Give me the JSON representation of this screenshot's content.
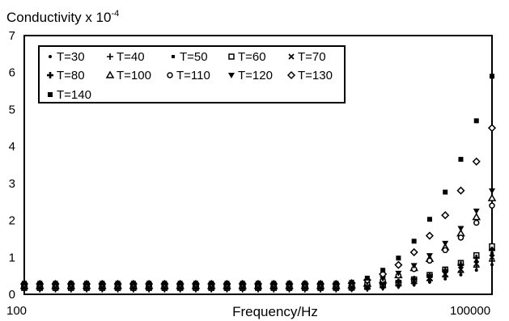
{
  "chart_data": {
    "type": "scatter",
    "title": "",
    "ylabel_main": "Conductivity x 10",
    "ylabel_exp": "-4",
    "xlabel": "Frequency/Hz",
    "x_scale": "log",
    "xlim": [
      100,
      100000
    ],
    "ylim": [
      0,
      7
    ],
    "y_ticks": [
      "0",
      "1",
      "2",
      "3",
      "4",
      "5",
      "6",
      "7"
    ],
    "x_tick_labels": [
      "100",
      "100000"
    ],
    "legend_position": "top-left",
    "series": [
      {
        "name": "T=30",
        "marker": "dot",
        "y_end": 0.8
      },
      {
        "name": "T=40",
        "marker": "plus",
        "y_end": 0.9
      },
      {
        "name": "T=50",
        "marker": "small-square",
        "y_end": 1.1
      },
      {
        "name": "T=60",
        "marker": "open-square",
        "y_end": 1.3
      },
      {
        "name": "T=70",
        "marker": "cross",
        "y_end": 1.0
      },
      {
        "name": "T=80",
        "marker": "filled-cross",
        "y_end": 1.2
      },
      {
        "name": "T=100",
        "marker": "triangle",
        "y_end": 2.6
      },
      {
        "name": "T=110",
        "marker": "circle",
        "y_end": 2.4
      },
      {
        "name": "T=120",
        "marker": "down-triangle",
        "y_end": 2.8
      },
      {
        "name": "T=130",
        "marker": "diamond",
        "y_end": 4.5
      },
      {
        "name": "T=140",
        "marker": "filled-square",
        "y_end": 5.9
      }
    ]
  }
}
